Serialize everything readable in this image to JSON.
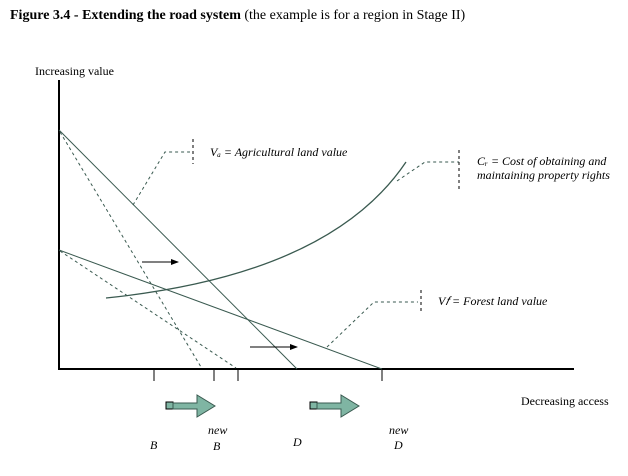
{
  "title": {
    "bold": "Figure 3.4 - Extending the road system",
    "rest": " (the example is for a region in Stage II)"
  },
  "axes": {
    "y_label": "Increasing value",
    "x_label": "Decreasing access"
  },
  "labels": {
    "va": "Vₐ = Agricultural land value",
    "cr_line1": "Cᵣ = Cost of obtaining and",
    "cr_line2": "maintaining property rights",
    "vf": "V𝑓 = Forest land value"
  },
  "ticks": {
    "b": "B",
    "new_b_top": "new",
    "new_b": "B",
    "d": "D",
    "new_d_top": "new",
    "new_d": "D"
  },
  "colors": {
    "line": "#3a5a50",
    "arrow_fill": "#7fb5a3"
  }
}
